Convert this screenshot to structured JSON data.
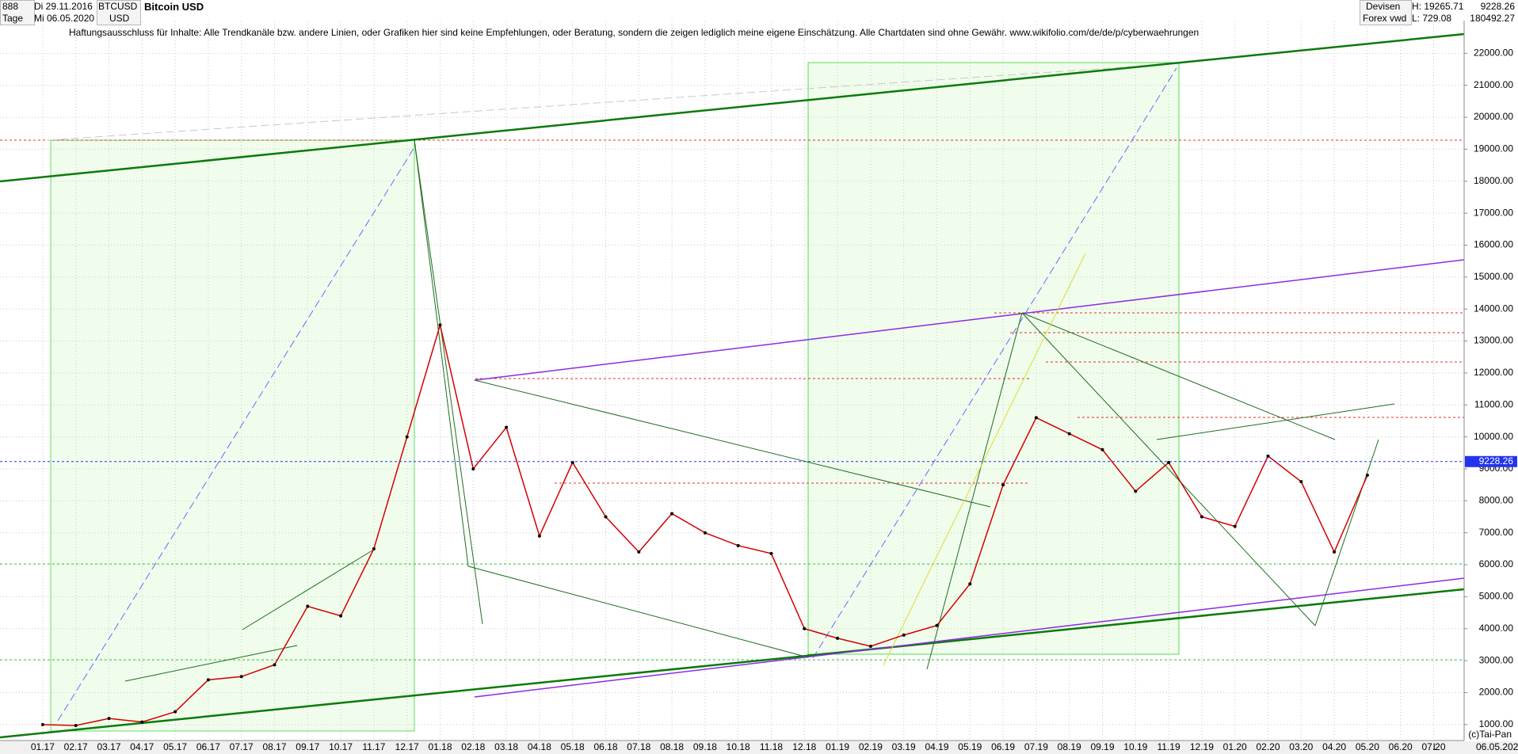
{
  "header": {
    "count": "888",
    "period": "Tage",
    "start_date": "Di 29.11.2016",
    "end_date": "Mi 06.05.2020",
    "symbol": "BTCUSD",
    "currency": "USD",
    "title": "Bitcoin USD",
    "market": "Devisen",
    "source": "Forex vwd",
    "high": "H: 19265.71",
    "low": "L: 729.08",
    "volume": "180492.27",
    "disclaimer": "Haftungsausschluss für Inhalte: Alle Trendkanäle bzw. andere Linien, oder Grafiken hier sind keine Empfehlungen, oder Beratung, sondern die zeigen lediglich meine eigene Einschätzung. Alle Chartdaten sind ohne Gewähr.  www.wikifolio.com/de/de/p/cyberwaehrungen",
    "copyright": "(c)Tai-Pan",
    "scale_mode": "L",
    "last_date": "06.05.2020"
  },
  "chart_data": {
    "type": "line",
    "title": "Bitcoin USD",
    "categories": [
      "01.17",
      "02.17",
      "03.17",
      "04.17",
      "05.17",
      "06.17",
      "07.17",
      "08.17",
      "09.17",
      "10.17",
      "11.17",
      "12.17",
      "01.18",
      "02.18",
      "03.18",
      "04.18",
      "05.18",
      "06.18",
      "07.18",
      "08.18",
      "09.18",
      "10.18",
      "11.18",
      "12.18",
      "01.19",
      "02.19",
      "03.19",
      "04.19",
      "05.19",
      "06.19",
      "07.19",
      "08.19",
      "09.19",
      "10.19",
      "11.19",
      "12.19",
      "01.20",
      "02.20",
      "03.20",
      "04.20",
      "05.20",
      "06.20",
      "07.20"
    ],
    "series": [
      {
        "name": "BTCUSD",
        "color": "#d40000",
        "values": [
          1000,
          970,
          1190,
          1080,
          1400,
          2400,
          2500,
          2870,
          4700,
          4400,
          6500,
          10000,
          13500,
          9000,
          10300,
          6900,
          9200,
          7500,
          6400,
          7600,
          7000,
          6600,
          6350,
          4000,
          3700,
          3450,
          3800,
          4100,
          5400,
          8500,
          10600,
          10100,
          9600,
          8300,
          9200,
          7500,
          7200,
          9400,
          8600,
          6400,
          8800,
          null,
          null
        ]
      }
    ],
    "last_price": 9228.26,
    "ylim": [
      500,
      23000
    ],
    "yticks": [
      {
        "value": 1000,
        "label": "1000.00"
      },
      {
        "value": 2000,
        "label": "2000.00"
      },
      {
        "value": 3000,
        "label": "3000.00"
      },
      {
        "value": 4000,
        "label": "4000.00"
      },
      {
        "value": 5000,
        "label": "5000.00"
      },
      {
        "value": 6000,
        "label": "6000.00"
      },
      {
        "value": 7000,
        "label": "7000.00"
      },
      {
        "value": 8000,
        "label": "8000.00"
      },
      {
        "value": 9000,
        "label": "9000.00"
      },
      {
        "value": 10000,
        "label": "10000.00"
      },
      {
        "value": 11000,
        "label": "11000.00"
      },
      {
        "value": 12000,
        "label": "12000.00"
      },
      {
        "value": 13000,
        "label": "13000.00"
      },
      {
        "value": 14000,
        "label": "14000.00"
      },
      {
        "value": 15000,
        "label": "15000.00"
      },
      {
        "value": 16000,
        "label": "16000.00"
      },
      {
        "value": 17000,
        "label": "17000.00"
      },
      {
        "value": 18000,
        "label": "18000.00"
      },
      {
        "value": 19000,
        "label": "19000.00"
      },
      {
        "value": 20000,
        "label": "20000.00"
      },
      {
        "value": 21000,
        "label": "21000.00"
      },
      {
        "value": 22000,
        "label": "22000.00"
      }
    ],
    "grid": true
  }
}
